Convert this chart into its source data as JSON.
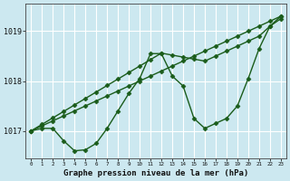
{
  "background_color": "#cce8f0",
  "grid_color": "#ffffff",
  "line_color": "#1a5c1a",
  "marker_color": "#1a5c1a",
  "title": "Graphe pression niveau de la mer (hPa)",
  "xlim": [
    -0.5,
    23.5
  ],
  "ylim": [
    1016.45,
    1019.55
  ],
  "yticks": [
    1017,
    1018,
    1019
  ],
  "xticks": [
    0,
    1,
    2,
    3,
    4,
    5,
    6,
    7,
    8,
    9,
    10,
    11,
    12,
    13,
    14,
    15,
    16,
    17,
    18,
    19,
    20,
    21,
    22,
    23
  ],
  "line1_x": [
    0,
    1,
    2,
    3,
    4,
    5,
    6,
    7,
    8,
    9,
    10,
    11,
    12,
    13,
    14,
    15,
    16,
    17,
    18,
    19,
    20,
    21,
    22,
    23
  ],
  "line1_y": [
    1017.0,
    1017.13,
    1017.26,
    1017.39,
    1017.52,
    1017.65,
    1017.78,
    1017.91,
    1018.04,
    1018.17,
    1018.3,
    1018.43,
    1018.56,
    1018.52,
    1018.48,
    1018.44,
    1018.4,
    1018.5,
    1018.6,
    1018.7,
    1018.8,
    1018.9,
    1019.1,
    1019.25
  ],
  "line2_x": [
    0,
    1,
    2,
    3,
    4,
    5,
    6,
    7,
    8,
    9,
    10,
    11,
    12,
    13,
    14,
    15,
    16,
    17,
    18,
    19,
    20,
    21,
    22,
    23
  ],
  "line2_y": [
    1017.0,
    1017.1,
    1017.2,
    1017.3,
    1017.4,
    1017.5,
    1017.6,
    1017.7,
    1017.8,
    1017.9,
    1018.0,
    1018.1,
    1018.2,
    1018.3,
    1018.4,
    1018.5,
    1018.6,
    1018.7,
    1018.8,
    1018.9,
    1019.0,
    1019.1,
    1019.2,
    1019.3
  ],
  "line3_x": [
    0,
    1,
    2,
    3,
    4,
    5,
    6,
    7,
    8,
    9,
    10,
    11,
    12,
    13,
    14,
    15,
    16,
    17,
    18,
    19,
    20,
    21,
    22,
    23
  ],
  "line3_y": [
    1017.0,
    1017.05,
    1017.05,
    1016.8,
    1016.6,
    1016.62,
    1016.75,
    1017.05,
    1017.4,
    1017.75,
    1018.05,
    1018.55,
    1018.55,
    1018.1,
    1017.9,
    1017.25,
    1017.05,
    1017.15,
    1017.25,
    1017.5,
    1018.05,
    1018.65,
    1019.1,
    1019.3
  ]
}
